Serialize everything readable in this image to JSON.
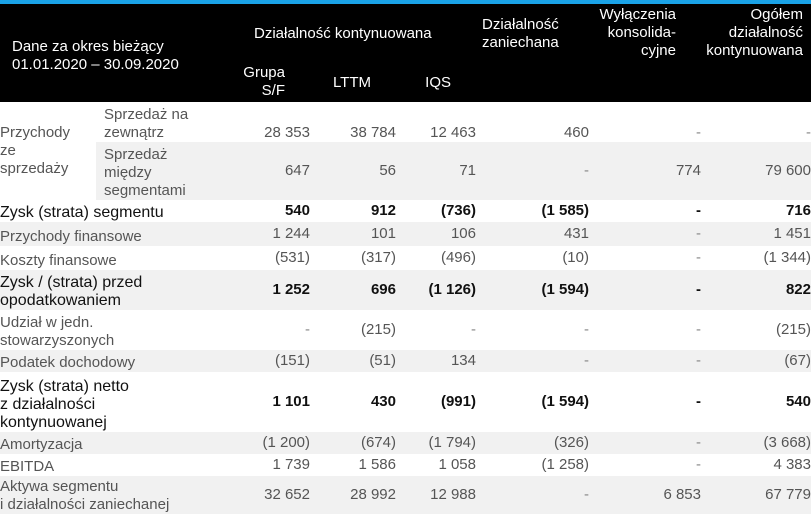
{
  "header": {
    "period_label": "Dane za okres bieżący",
    "period_dates": "01.01.2020 – 30.09.2020",
    "continuing": "Działalność kontynuowana",
    "discontinued_line1": "Działalność",
    "discontinued_line2": "zaniechana",
    "elim_line1": "Wyłączenia",
    "elim_line2": "konsolida-",
    "elim_line3": "cyjne",
    "total_line1": "Ogółem",
    "total_line2": "działalność",
    "total_line3": "kontynuowana",
    "grupa_line1": "Grupa",
    "grupa_line2": "S/F",
    "lttm": "LTTM",
    "iqs": "IQS"
  },
  "revenue_group": {
    "label_line1": "Przychody",
    "label_line2": "ze",
    "label_line3": "sprzedaży",
    "external": {
      "label_line1": "Sprzedaż na",
      "label_line2": "zewnątrz",
      "values": [
        "28 353",
        "38 784",
        "12 463",
        "460",
        "-",
        "-"
      ]
    },
    "intersegment": {
      "label_line1": "Sprzedaż",
      "label_line2": "między",
      "label_line3": "segmentami",
      "values": [
        "647",
        "56",
        "71",
        "-",
        "774",
        "79 600"
      ]
    }
  },
  "rows": [
    {
      "label_line1": "Zysk (strata) segmentu",
      "values": [
        "540",
        "912",
        "(736)",
        "(1 585)",
        "-",
        "716"
      ]
    },
    {
      "label_line1": "Przychody finansowe",
      "values": [
        "1 244",
        "101",
        "106",
        "431",
        "-",
        "1 451"
      ]
    },
    {
      "label_line1": "Koszty finansowe",
      "values": [
        "(531)",
        "(317)",
        "(496)",
        "(10)",
        "-",
        "(1 344)"
      ]
    },
    {
      "label_line1": "Zysk / (strata) przed",
      "label_line2": "opodatkowaniem",
      "values": [
        "1 252",
        "696",
        "(1 126)",
        "(1 594)",
        "-",
        "822"
      ]
    },
    {
      "label_line1": "Udział w jedn.",
      "label_line2": "stowarzyszonych",
      "values": [
        "-",
        "(215)",
        "-",
        "-",
        "-",
        "(215)"
      ]
    },
    {
      "label_line1": "Podatek dochodowy",
      "values": [
        "(151)",
        "(51)",
        "134",
        "-",
        "-",
        "(67)"
      ]
    },
    {
      "label_line1": "Zysk (strata) netto",
      "label_line2": "z działalności",
      "label_line3": "kontynuowanej",
      "values": [
        "1 101",
        "430",
        "(991)",
        "(1 594)",
        "-",
        "540"
      ]
    },
    {
      "label_line1": "Amortyzacja",
      "values": [
        "(1 200)",
        "(674)",
        "(1 794)",
        "(326)",
        "-",
        "(3 668)"
      ]
    },
    {
      "label_line1": "EBITDA",
      "values": [
        "1 739",
        "1 586",
        "1 058",
        "(1 258)",
        "-",
        "4 383"
      ]
    },
    {
      "label_line1": "Aktywa segmentu",
      "label_line2": "i działalności zaniechanej",
      "values": [
        "32 652",
        "28 992",
        "12 988",
        "-",
        "6 853",
        "67 779"
      ]
    }
  ]
}
